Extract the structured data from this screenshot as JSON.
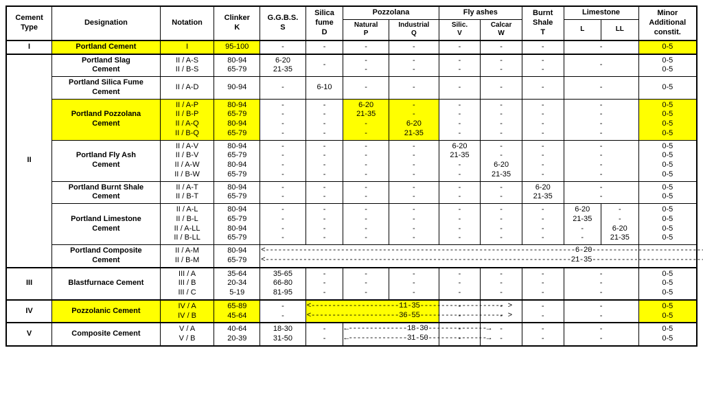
{
  "headers": {
    "cement_type": "Cement\nType",
    "designation": "Designation",
    "notation": "Notation",
    "clinker": "Clinker\nK",
    "ggbs": "G.G.B.S.\nS",
    "silica_fume": "Silica\nfume\nD",
    "pozzolana": "Pozzolana",
    "pozz_natural": "Natural\nP",
    "pozz_industrial": "Industrial\nQ",
    "fly_ashes": "Fly ashes",
    "fly_silic": "Silic.\nV",
    "fly_calcar": "Calcar\nW",
    "burnt_shale": "Burnt\nShale\nT",
    "limestone": "Limestone",
    "lime_l": "L",
    "lime_ll": "LL",
    "minor": "Minor\nAdditional\nconstit."
  },
  "types": {
    "I": "I",
    "II": "II",
    "III": "III",
    "IV": "IV",
    "V": "V"
  },
  "rows": {
    "r1": {
      "desig": "Portland Cement",
      "not": [
        "I"
      ],
      "clinker": [
        "95-100"
      ],
      "minor": [
        "0-5"
      ]
    },
    "r2": {
      "desig": "Portland Slag\nCement",
      "not": [
        "II / A-S",
        "II / B-S"
      ],
      "clinker": [
        "80-94",
        "65-79"
      ],
      "ggbs": [
        "6-20",
        "21-35"
      ],
      "minor": [
        "0-5",
        "0-5"
      ]
    },
    "r3": {
      "desig": "Portland Silica Fume\nCement",
      "not": [
        "II / A-D"
      ],
      "clinker": [
        "90-94"
      ],
      "sf": [
        "6-10"
      ],
      "minor": [
        "0-5"
      ]
    },
    "r4": {
      "desig": "Portland Pozzolana\nCement",
      "not": [
        "II / A-P",
        "II / B-P",
        "II / A-Q",
        "II / B-Q"
      ],
      "clinker": [
        "80-94",
        "65-79",
        "80-94",
        "65-79"
      ],
      "pn": [
        "6-20",
        "21-35",
        "-",
        "-"
      ],
      "pi": [
        "-",
        "-",
        "6-20",
        "21-35"
      ],
      "minor": [
        "0-5",
        "0-5",
        "0-5",
        "0-5"
      ]
    },
    "r5": {
      "desig": "Portland Fly Ash\nCement",
      "not": [
        "II / A-V",
        "II / B-V",
        "II / A-W",
        "II / B-W"
      ],
      "clinker": [
        "80-94",
        "65-79",
        "80-94",
        "65-79"
      ],
      "fv": [
        "6-20",
        "21-35",
        "-",
        "-"
      ],
      "fw": [
        "-",
        "-",
        "6-20",
        "21-35"
      ],
      "minor": [
        "0-5",
        "0-5",
        "0-5",
        "0-5"
      ]
    },
    "r6": {
      "desig": "Portland Burnt Shale\nCement",
      "not": [
        "II / A-T",
        "II / B-T"
      ],
      "clinker": [
        "80-94",
        "65-79"
      ],
      "bs": [
        "6-20",
        "21-35"
      ],
      "minor": [
        "0-5",
        "0-5"
      ]
    },
    "r7": {
      "desig": "Portland Limestone\nCement",
      "not": [
        "II / A-L",
        "II / B-L",
        "II / A-LL",
        "II / B-LL"
      ],
      "clinker": [
        "80-94",
        "65-79",
        "80-94",
        "65-79"
      ],
      "ll": [
        "6-20",
        "21-35",
        "-",
        "-"
      ],
      "lll": [
        "-",
        "-",
        "6-20",
        "21-35"
      ],
      "minor": [
        "0-5",
        "0-5",
        "0-5",
        "0-5"
      ]
    },
    "r8": {
      "desig": "Portland Composite\nCement",
      "not": [
        "II / A-M",
        "II / B-M"
      ],
      "clinker": [
        "80-94",
        "65-79"
      ],
      "range1": "<--------------------------------------------------------------------------6-20------------------------------------------------------------------------- >",
      "range2": "<-------------------------------------------------------------------------21-35------------------------------------------------------------------------ >"
    },
    "r9": {
      "desig": "Blastfurnace Cement",
      "not": [
        "III / A",
        "III / B",
        "III / C"
      ],
      "clinker": [
        "35-64",
        "20-34",
        "5-19"
      ],
      "ggbs": [
        "35-65",
        "66-80",
        "81-95"
      ],
      "minor": [
        "0-5",
        "0-5",
        "0-5"
      ]
    },
    "r10": {
      "desig": "Pozzolanic Cement",
      "not": [
        "IV / A",
        "IV / B"
      ],
      "clinker": [
        "65-89",
        "45-64"
      ],
      "range1": "<---------------------11-35-------------------- >",
      "range2": "<---------------------36-55-------------------- >",
      "minor": [
        "0-5",
        "0-5"
      ]
    },
    "r11": {
      "desig": "Composite Cement",
      "not": [
        "V / A",
        "V / B"
      ],
      "clinker": [
        "40-64",
        "20-39"
      ],
      "ggbs": [
        "18-30",
        "31-50"
      ],
      "range1": "←--------------18-30--------------→",
      "range2": "←--------------31-50--------------→",
      "minor": [
        "0-5",
        "0-5"
      ]
    }
  },
  "dash": "-",
  "colors": {
    "highlight": "#ffff00",
    "border": "#000000",
    "bg": "#ffffff"
  }
}
